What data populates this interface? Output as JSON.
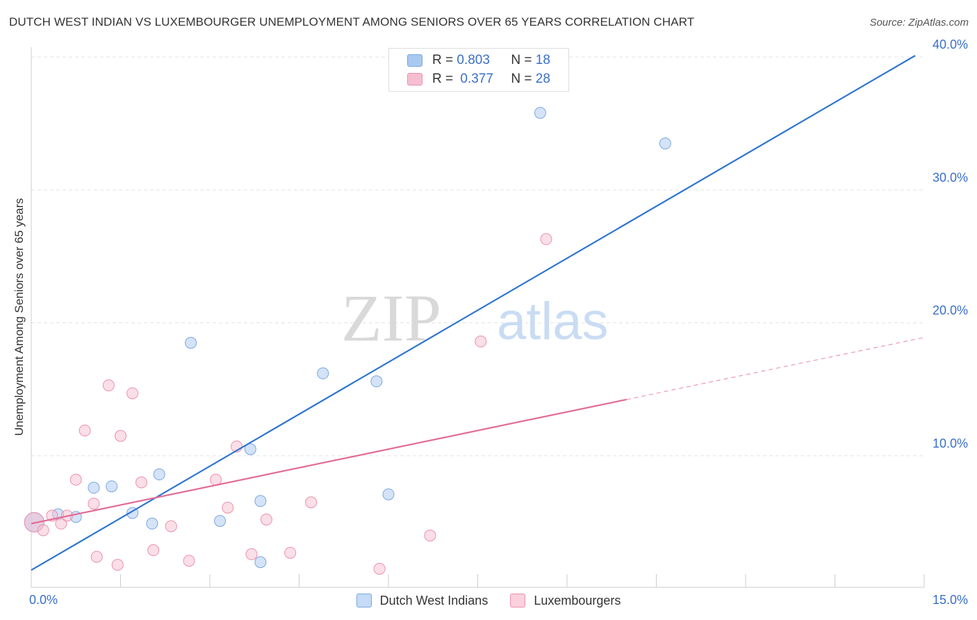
{
  "title": "DUTCH WEST INDIAN VS LUXEMBOURGER UNEMPLOYMENT AMONG SENIORS OVER 65 YEARS CORRELATION CHART",
  "source": "Source: ZipAtlas.com",
  "watermark": {
    "part1": "ZIP",
    "part2": "atlas"
  },
  "legend_top": {
    "rows": [
      {
        "r_label": "R = ",
        "r_value": "0.803",
        "n_label": "N = ",
        "n_value": "18",
        "color": "#a9c8f0",
        "border": "#7aa6e0"
      },
      {
        "r_label": "R = ",
        "r_value": "0.377",
        "n_label": "N = ",
        "n_value": "28",
        "color": "#f6bfd0",
        "border": "#ec8fab"
      }
    ]
  },
  "legend_bottom": [
    {
      "label": "Dutch West Indians",
      "color": "#c5dbf7",
      "border": "#7aa6e0"
    },
    {
      "label": "Luxembourgers",
      "color": "#fad1dd",
      "border": "#ec8fab"
    }
  ],
  "chart_data": {
    "type": "scatter",
    "title": "DUTCH WEST INDIAN VS LUXEMBOURGER UNEMPLOYMENT AMONG SENIORS OVER 65 YEARS CORRELATION CHART",
    "xlabel": "",
    "ylabel": "Unemployment Among Seniors over 65 years",
    "xlim": [
      0,
      15
    ],
    "ylim": [
      0,
      40
    ],
    "x_tick_labels": [
      {
        "value": 0,
        "label": "0.0%"
      },
      {
        "value": 15,
        "label": "15.0%"
      }
    ],
    "y_tick_labels": [
      {
        "value": 10,
        "label": "10.0%"
      },
      {
        "value": 20,
        "label": "20.0%"
      },
      {
        "value": 30,
        "label": "30.0%"
      },
      {
        "value": 40,
        "label": "40.0%"
      }
    ],
    "x_minor_ticks": [
      0,
      1.5,
      3,
      4.5,
      6,
      7.5,
      9,
      10.5,
      12,
      13.5,
      15
    ],
    "grid": true,
    "series": [
      {
        "name": "Dutch West Indians",
        "color": "#a9c8f0",
        "stroke": "#7aa6e0",
        "trend_color": "#2e75d0",
        "trend": {
          "x0": 0,
          "y0": 1.4,
          "x1": 15,
          "y1": 40.5,
          "solid_to": 15
        },
        "points": [
          {
            "x": 0.05,
            "y": 5.0,
            "big": true
          },
          {
            "x": 0.45,
            "y": 5.6
          },
          {
            "x": 0.75,
            "y": 5.4
          },
          {
            "x": 1.05,
            "y": 7.6
          },
          {
            "x": 1.35,
            "y": 7.7
          },
          {
            "x": 1.7,
            "y": 5.7
          },
          {
            "x": 2.03,
            "y": 4.9
          },
          {
            "x": 2.15,
            "y": 8.6
          },
          {
            "x": 2.68,
            "y": 18.5
          },
          {
            "x": 3.17,
            "y": 5.1
          },
          {
            "x": 3.68,
            "y": 10.5
          },
          {
            "x": 3.85,
            "y": 2.0
          },
          {
            "x": 3.85,
            "y": 6.6
          },
          {
            "x": 4.9,
            "y": 16.2
          },
          {
            "x": 5.8,
            "y": 15.6
          },
          {
            "x": 6.0,
            "y": 7.1
          },
          {
            "x": 8.55,
            "y": 35.8
          },
          {
            "x": 10.65,
            "y": 33.5
          }
        ]
      },
      {
        "name": "Luxembourgers",
        "color": "#f6bfd0",
        "stroke": "#ec8fab",
        "trend_color": "#e26b94",
        "trend": {
          "x0": 0,
          "y0": 4.9,
          "x1": 15,
          "y1": 18.9,
          "solid_to": 10.0
        },
        "points": [
          {
            "x": 0.05,
            "y": 5.0,
            "big": true
          },
          {
            "x": 0.2,
            "y": 4.4
          },
          {
            "x": 0.35,
            "y": 5.5
          },
          {
            "x": 0.5,
            "y": 4.9
          },
          {
            "x": 0.6,
            "y": 5.5
          },
          {
            "x": 0.75,
            "y": 8.2
          },
          {
            "x": 0.9,
            "y": 11.9
          },
          {
            "x": 1.05,
            "y": 6.4
          },
          {
            "x": 1.1,
            "y": 2.4
          },
          {
            "x": 1.3,
            "y": 15.3
          },
          {
            "x": 1.45,
            "y": 1.8
          },
          {
            "x": 1.5,
            "y": 11.5
          },
          {
            "x": 1.7,
            "y": 14.7
          },
          {
            "x": 1.85,
            "y": 8.0
          },
          {
            "x": 2.05,
            "y": 2.9
          },
          {
            "x": 2.35,
            "y": 4.7
          },
          {
            "x": 2.65,
            "y": 2.1
          },
          {
            "x": 3.1,
            "y": 8.2
          },
          {
            "x": 3.3,
            "y": 6.1
          },
          {
            "x": 3.45,
            "y": 10.7
          },
          {
            "x": 3.7,
            "y": 2.6
          },
          {
            "x": 3.95,
            "y": 5.2
          },
          {
            "x": 4.35,
            "y": 2.7
          },
          {
            "x": 4.7,
            "y": 6.5
          },
          {
            "x": 5.85,
            "y": 1.5
          },
          {
            "x": 6.7,
            "y": 4.0
          },
          {
            "x": 7.55,
            "y": 18.6
          },
          {
            "x": 8.65,
            "y": 26.3
          }
        ]
      }
    ]
  }
}
